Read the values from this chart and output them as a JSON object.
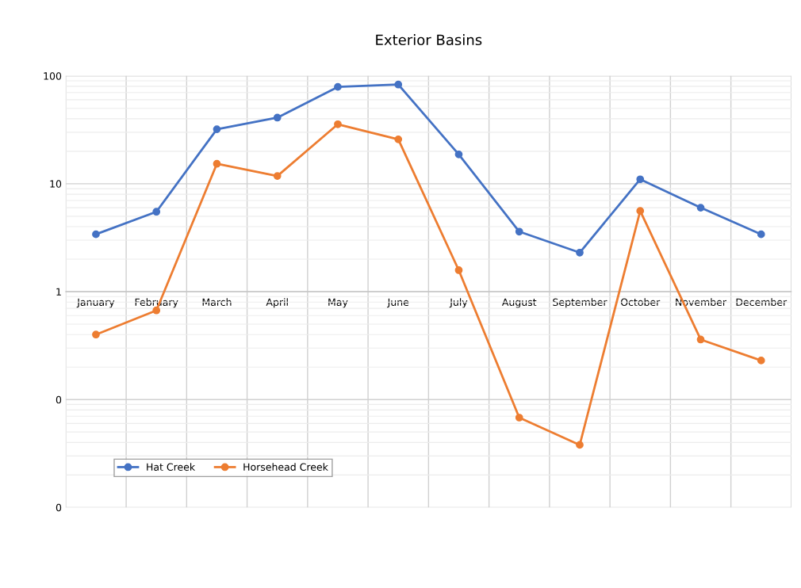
{
  "chart_data": {
    "type": "line",
    "title": "Exterior Basins",
    "categories": [
      "January",
      "February",
      "March",
      "April",
      "May",
      "June",
      "July",
      "August",
      "September",
      "October",
      "November",
      "December"
    ],
    "series": [
      {
        "name": "Hat Creek",
        "color": "#4472c4",
        "values": [
          3.4,
          5.5,
          32,
          41,
          79,
          83,
          18.7,
          3.6,
          2.3,
          11,
          6.0,
          3.4
        ]
      },
      {
        "name": "Horsehead Creek",
        "color": "#ed7d31",
        "values": [
          0.4,
          0.67,
          15.3,
          11.8,
          35.6,
          25.8,
          1.58,
          0.068,
          0.038,
          5.6,
          0.36,
          0.23
        ]
      }
    ],
    "log": true,
    "ylim": [
      0.01,
      100
    ],
    "yticks": [
      {
        "value": 0.01,
        "label": "0"
      },
      {
        "value": 0.1,
        "label": "0"
      },
      1,
      10,
      100
    ],
    "grid": true,
    "legend": "bottom left",
    "marker": "circle",
    "line_style": "solid"
  }
}
